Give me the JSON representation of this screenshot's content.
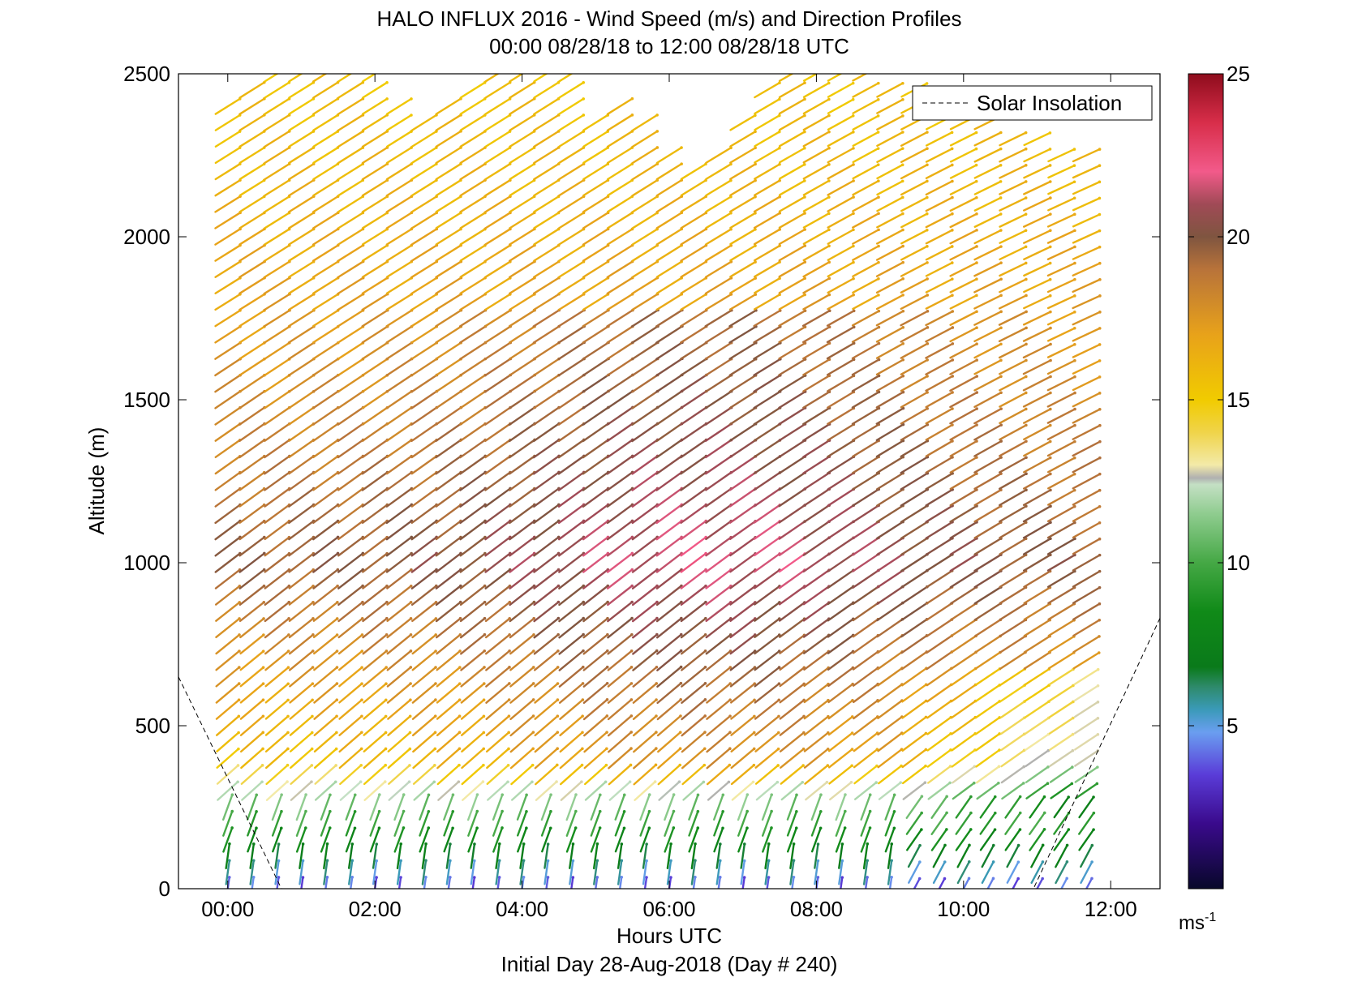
{
  "chart_data": {
    "type": "wind-barb",
    "title": "HALO INFLUX 2016 - Wind Speed (m/s) and Direction Profiles",
    "subtitle": "00:00 08/28/18 to 12:00 08/28/18  UTC",
    "xlabel": "Hours UTC",
    "xlabel2": "Initial Day 28-Aug-2018 (Day # 240)",
    "ylabel": "Altitude (m)",
    "x_ticks": [
      "00:00",
      "02:00",
      "04:00",
      "06:00",
      "08:00",
      "10:00",
      "12:00"
    ],
    "y_ticks": [
      "0",
      "500",
      "1000",
      "1500",
      "2000",
      "2500"
    ],
    "xlim_hours": [
      -0.67,
      12.67
    ],
    "ylim": [
      0,
      2500
    ],
    "colorbar": {
      "ticks": [
        "5",
        "10",
        "15",
        "20",
        "25"
      ],
      "unit_base": "ms",
      "unit_exp": "-1",
      "range": [
        0,
        25
      ],
      "stops": [
        {
          "v": 0,
          "c": "#08082a"
        },
        {
          "v": 2,
          "c": "#3a0a8c"
        },
        {
          "v": 3.5,
          "c": "#5a3cd8"
        },
        {
          "v": 4.8,
          "c": "#6a9ef0"
        },
        {
          "v": 5.5,
          "c": "#3a9ab8"
        },
        {
          "v": 6.2,
          "c": "#2e8a6a"
        },
        {
          "v": 6.8,
          "c": "#0a7a1a"
        },
        {
          "v": 8.5,
          "c": "#108a18"
        },
        {
          "v": 10,
          "c": "#45a845"
        },
        {
          "v": 11.5,
          "c": "#8fcc8f"
        },
        {
          "v": 12.4,
          "c": "#c4e0c4"
        },
        {
          "v": 12.6,
          "c": "#b0b0b0"
        },
        {
          "v": 13,
          "c": "#f3eaa8"
        },
        {
          "v": 14,
          "c": "#f0d44a"
        },
        {
          "v": 15,
          "c": "#f1cb00"
        },
        {
          "v": 17,
          "c": "#e8a21a"
        },
        {
          "v": 19,
          "c": "#b8733a"
        },
        {
          "v": 20,
          "c": "#7f5540"
        },
        {
          "v": 21,
          "c": "#a04a56"
        },
        {
          "v": 22,
          "c": "#f25a8a"
        },
        {
          "v": 23.5,
          "c": "#d82e4a"
        },
        {
          "v": 25,
          "c": "#8e0c1c"
        }
      ]
    },
    "legend": {
      "label": "Solar Insolation",
      "placement": "top-right",
      "line_style": "dashed"
    },
    "solar_insolation": [
      {
        "x": -0.67,
        "y": 650
      },
      {
        "x": 0.73,
        "y": 0
      },
      {
        "x": 10.95,
        "y": 0
      },
      {
        "x": 12.67,
        "y": 830
      }
    ],
    "profiles": {
      "hours": [
        0.0,
        0.33,
        0.67,
        1.0,
        1.33,
        1.67,
        2.0,
        2.33,
        2.67,
        3.0,
        3.33,
        3.67,
        4.0,
        4.33,
        4.67,
        5.0,
        5.33,
        5.67,
        6.0,
        6.33,
        6.67,
        7.0,
        7.33,
        7.67,
        8.0,
        8.33,
        8.67,
        9.0,
        9.33,
        9.67,
        10.0,
        10.33,
        10.67,
        11.0,
        11.33,
        11.67
      ],
      "altitude_step_m": 50,
      "top_altitude_m": [
        2400,
        2450,
        2500,
        2500,
        2500,
        2500,
        2500,
        2400,
        2350,
        2400,
        2450,
        2500,
        2500,
        2500,
        2500,
        2350,
        2400,
        2350,
        2250,
        2200,
        2250,
        2350,
        2450,
        2500,
        2500,
        2500,
        2500,
        2450,
        2450,
        2400,
        2350,
        2350,
        2300,
        2300,
        2250,
        2250
      ],
      "speed_profile_ms": [
        {
          "alt": 0,
          "speed": 4
        },
        {
          "alt": 100,
          "speed": 7
        },
        {
          "alt": 250,
          "speed": 11
        },
        {
          "alt": 400,
          "speed": 15.5
        },
        {
          "alt": 1000,
          "speed": 19.5
        },
        {
          "alt": 1600,
          "speed": 17.5
        },
        {
          "alt": 2200,
          "speed": 16
        },
        {
          "alt": 2500,
          "speed": 15.5
        }
      ],
      "direction_note": "From south-west veering to west aloft"
    }
  }
}
